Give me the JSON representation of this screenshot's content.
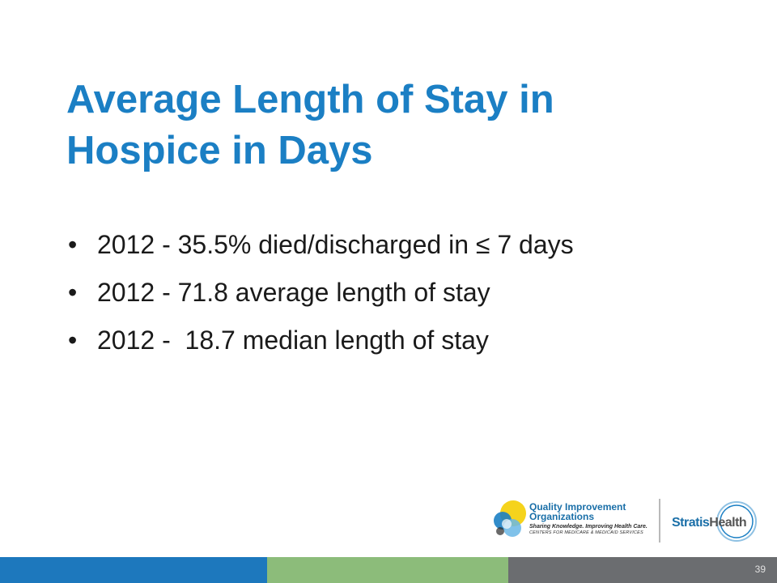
{
  "slide": {
    "title_lines": [
      "Average Length of Stay in",
      "Hospice in Days"
    ],
    "bullets": [
      "2012 - 35.5% died/discharged in ≤ 7 days",
      "2012 - 71.8 average length of stay",
      "2012 -  18.7 median length of stay"
    ],
    "bullet_glyph": "•",
    "page_number": "39"
  },
  "logos": {
    "qio": {
      "name_lines": [
        "Quality Improvement",
        "Organizations"
      ],
      "tagline": "Sharing Knowledge. Improving Health Care.",
      "subline": "CENTERS FOR MEDICARE & MEDICAID SERVICES",
      "icon": "qio-circles-icon"
    },
    "stratis": {
      "word_part1": "Stratis",
      "word_part2": "Health",
      "icon": "stratis-ring-icon"
    }
  },
  "colors": {
    "title": "#1b7fc4",
    "footer_blue": "#1d78bd",
    "footer_green": "#8cbc7a",
    "footer_gray": "#6b6d70"
  }
}
